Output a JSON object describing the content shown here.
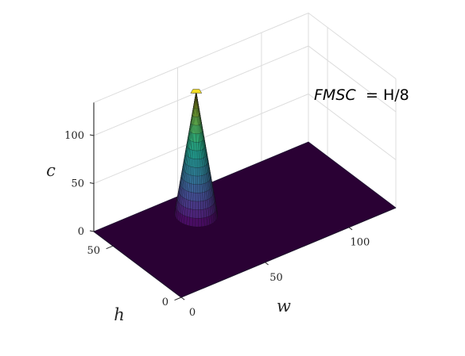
{
  "chart_data": {
    "type": "surface",
    "title": "",
    "annotation": {
      "lhs": "FMSC",
      "rhs": "= H/8"
    },
    "xlabel": "w",
    "ylabel": "h",
    "zlabel": "c",
    "xlim": [
      0,
      128
    ],
    "ylim": [
      0,
      64
    ],
    "zlim": [
      0,
      128
    ],
    "xticks": [
      "0",
      "50",
      "100"
    ],
    "yticks": [
      "0",
      "50"
    ],
    "zticks": [
      "0",
      "50",
      "100"
    ],
    "xtick_values": [
      0,
      50,
      100
    ],
    "ytick_values": [
      0,
      50
    ],
    "ztick_values": [
      0,
      50,
      100
    ],
    "grid": true,
    "colormap": "viridis",
    "surface": {
      "shape": "cone",
      "center_w": 48,
      "center_h": 48,
      "base_radius": 10,
      "peak": 128,
      "baseline": 0
    }
  }
}
